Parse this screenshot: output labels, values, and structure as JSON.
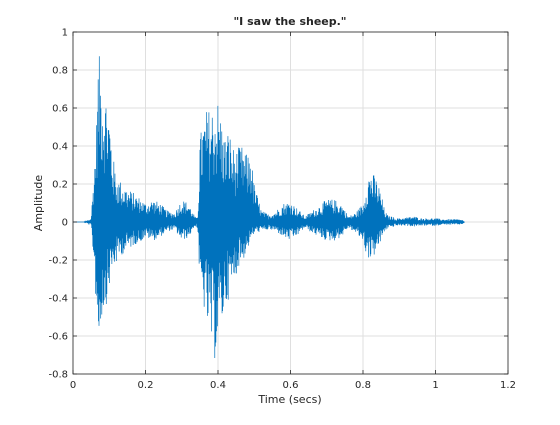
{
  "chart_data": {
    "type": "line",
    "title": "\"I saw the sheep.\"",
    "xlabel": "Time (secs)",
    "ylabel": "Amplitude",
    "xlim": [
      0,
      1.2
    ],
    "ylim": [
      -0.8,
      1
    ],
    "xticks": [
      0,
      0.2,
      0.4,
      0.6,
      0.8,
      1,
      1.2
    ],
    "xtick_labels": [
      "0",
      "0.2",
      "0.4",
      "0.6",
      "0.8",
      "1",
      "1.2"
    ],
    "yticks": [
      -0.8,
      -0.6,
      -0.4,
      -0.2,
      0,
      0.2,
      0.4,
      0.6,
      0.8,
      1
    ],
    "ytick_labels": [
      "-0.8",
      "-0.6",
      "-0.4",
      "-0.2",
      "0",
      "0.2",
      "0.4",
      "0.6",
      "0.8",
      "1"
    ],
    "grid": true,
    "series": [
      {
        "color": "#0072BD",
        "envelope": {
          "time": [
            0,
            0.03,
            0.05,
            0.06,
            0.065,
            0.07,
            0.08,
            0.09,
            0.1,
            0.11,
            0.12,
            0.13,
            0.15,
            0.17,
            0.19,
            0.2,
            0.22,
            0.24,
            0.26,
            0.28,
            0.3,
            0.32,
            0.33,
            0.34,
            0.345,
            0.35,
            0.36,
            0.37,
            0.38,
            0.39,
            0.4,
            0.41,
            0.42,
            0.43,
            0.44,
            0.45,
            0.46,
            0.47,
            0.48,
            0.49,
            0.5,
            0.52,
            0.54,
            0.56,
            0.58,
            0.6,
            0.62,
            0.64,
            0.66,
            0.68,
            0.7,
            0.72,
            0.74,
            0.76,
            0.78,
            0.8,
            0.81,
            0.82,
            0.83,
            0.84,
            0.85,
            0.86,
            0.87,
            0.88,
            0.89,
            0.9,
            0.92,
            0.94,
            0.96,
            0.98,
            1.0,
            1.02,
            1.04,
            1.06,
            1.075,
            1.08
          ],
          "upper": [
            0,
            0,
            0.02,
            0.35,
            0.55,
            0.9,
            0.8,
            0.7,
            0.6,
            0.35,
            0.25,
            0.22,
            0.18,
            0.15,
            0.12,
            0.1,
            0.12,
            0.1,
            0.06,
            0.05,
            0.12,
            0.1,
            0.05,
            0.02,
            0.06,
            0.45,
            0.55,
            0.6,
            0.6,
            0.63,
            0.65,
            0.55,
            0.45,
            0.5,
            0.4,
            0.38,
            0.4,
            0.4,
            0.35,
            0.38,
            0.2,
            0.06,
            0.04,
            0.06,
            0.1,
            0.11,
            0.07,
            0.03,
            0.06,
            0.09,
            0.12,
            0.12,
            0.1,
            0.03,
            0.05,
            0.1,
            0.22,
            0.28,
            0.25,
            0.22,
            0.15,
            0.06,
            0.03,
            0.03,
            0.02,
            0.02,
            0.025,
            0.03,
            0.02,
            0.02,
            0.02,
            0.015,
            0.015,
            0.015,
            0.012,
            0
          ],
          "lower": [
            0,
            0,
            -0.02,
            -0.28,
            -0.5,
            -0.66,
            -0.5,
            -0.45,
            -0.35,
            -0.25,
            -0.22,
            -0.18,
            -0.15,
            -0.12,
            -0.1,
            -0.08,
            -0.1,
            -0.08,
            -0.05,
            -0.04,
            -0.1,
            -0.08,
            -0.04,
            -0.02,
            -0.06,
            -0.38,
            -0.45,
            -0.55,
            -0.65,
            -0.74,
            -0.62,
            -0.55,
            -0.45,
            -0.4,
            -0.35,
            -0.28,
            -0.22,
            -0.2,
            -0.15,
            -0.1,
            -0.06,
            -0.05,
            -0.04,
            -0.05,
            -0.08,
            -0.1,
            -0.07,
            -0.03,
            -0.06,
            -0.08,
            -0.1,
            -0.1,
            -0.08,
            -0.03,
            -0.06,
            -0.1,
            -0.18,
            -0.2,
            -0.18,
            -0.15,
            -0.1,
            -0.05,
            -0.03,
            -0.03,
            -0.02,
            -0.02,
            -0.02,
            -0.025,
            -0.02,
            -0.02,
            -0.02,
            -0.015,
            -0.015,
            -0.015,
            -0.012,
            0
          ]
        }
      }
    ]
  }
}
